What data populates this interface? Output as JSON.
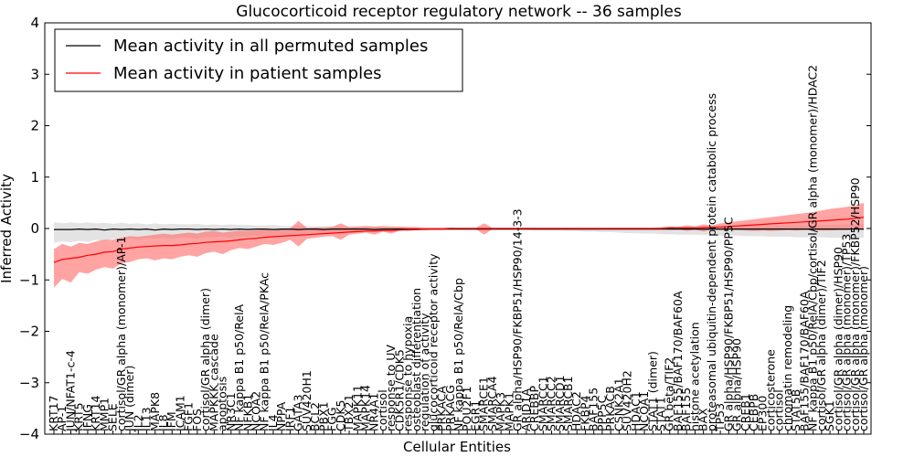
{
  "chart_data": {
    "type": "line",
    "title": "Glucocorticoid receptor regulatory network -- 36 samples",
    "xlabel": "Cellular Entities",
    "ylabel": "Inferred Activity",
    "ylim": [
      -4,
      4
    ],
    "yticks": [
      -4,
      -3,
      -2,
      -1,
      0,
      1,
      2,
      3,
      4
    ],
    "grid": false,
    "legend_position": "top-left",
    "colors": {
      "permuted": "#000000",
      "permuted_band": "#cccccc",
      "patient": "#ff0000",
      "patient_band": "#ff6666"
    },
    "x": [
      "KRT17",
      "AP-1",
      "JUN/NFAT1-c-4",
      "KRT5",
      "IFNG",
      "KRT14",
      "MMP1",
      "SELE",
      "cortisol/GR alpha (monomer)/AP-1",
      "JUN (dimer)",
      "IL2",
      "IL13",
      "MAPK8",
      "IL8",
      "IFM",
      "ICAM1",
      "FGF1",
      "FOS",
      "cortisol/GR alpha (dimer)",
      "MAPKKK cascade",
      "apoptosis",
      "NR3C1",
      "NF kappa B1 p50/RelA",
      "NFKB1",
      "NCOA2",
      "NF kappa B1 p50/RelA/PKAc",
      "IL4",
      "NPPA",
      "IRF1",
      "GATA3",
      "SUV420H1",
      "BCL2",
      "PBX1",
      "FGG",
      "CDK5",
      "TBX21",
      "MAPK11",
      "MAPK14",
      "NR4A1",
      "cortisol",
      "response to UV",
      "CDK5R1/CDK5",
      "response to hypoxia",
      "osteoblast differentiation",
      "regulation of activity",
      "glucocorticoid receptor activity",
      "PRKACA",
      "PRKACG",
      "NF kappa B1 p50/RelA/Cbp",
      "POU2F1",
      "EGR1",
      "SMARCE1",
      "SMARCA4",
      "MAPK3",
      "MAPK1",
      "GR alpha/HSP90/FKBP51/HSP90/14-3-3",
      "ARID1A",
      "CREBBP",
      "SMARCC1",
      "SMARCC2",
      "SMARCD1",
      "SMARCB1",
      "HDAC2",
      "FKBP4",
      "BAF155",
      "PPP5C",
      "PRKACB",
      "CSNK2A1",
      "SUV420H2",
      "HDAC1",
      "NCOA1",
      "STAT1 (dimer)",
      "STAT1",
      "GR beta/TIF2",
      "BAF155/BAF170/BAF60A",
      "BAF155",
      "histone acetylation",
      "BAX",
      "proteasomal ubiquitin-dependent protein catabolic process",
      "TP53",
      "GR alpha/HSP90/FKBP51/HSP90/PP5C",
      "GR alpha/HSP90",
      "CREB1",
      "CEBPB",
      "EP300",
      "corticosterone",
      "cortisol",
      "chromatin remodeling",
      "STAT5B",
      "BAF155/BAF170/BAF60A",
      "NF kappa B1 p50/RelA/Cbp/cortisol/GR alpha (monomer)/HDAC2",
      "cortisol/GR alpha (dimer)/TIF2",
      "SGK1",
      "cortisol/GR alpha (dimer)/HSP90",
      "cortisol/GR alpha (monomer)/TP53",
      "cortisol/GR alpha (monomer)/FKBP52/HSP90",
      "cortisol/GR alpha (monomer)"
    ],
    "series": [
      {
        "name": "Mean activity in all permuted samples",
        "values": [
          -0.02,
          -0.02,
          -0.02,
          -0.01,
          -0.02,
          -0.01,
          -0.03,
          -0.01,
          -0.02,
          -0.01,
          -0.02,
          -0.01,
          -0.03,
          -0.01,
          -0.02,
          -0.01,
          -0.01,
          -0.02,
          -0.01,
          -0.02,
          -0.01,
          -0.02,
          -0.01,
          -0.02,
          -0.01,
          -0.01,
          -0.02,
          -0.01,
          -0.01,
          -0.02,
          -0.01,
          -0.01,
          -0.02,
          -0.01,
          -0.01,
          -0.01,
          -0.01,
          -0.01,
          -0.02,
          -0.01,
          -0.01,
          -0.01,
          -0.01,
          -0.01,
          -0.01,
          -0.01,
          -0.01,
          -0.01,
          -0.01,
          -0.01,
          -0.01,
          -0.01,
          -0.01,
          -0.01,
          -0.01,
          -0.01,
          -0.01,
          -0.01,
          -0.01,
          -0.01,
          -0.01,
          -0.01,
          -0.01,
          -0.01,
          -0.01,
          -0.01,
          -0.01,
          -0.01,
          -0.01,
          -0.01,
          -0.01,
          -0.01,
          -0.01,
          -0.01,
          -0.01,
          -0.01,
          -0.01,
          -0.01,
          -0.01,
          -0.01,
          -0.01,
          -0.01,
          -0.01,
          -0.01,
          -0.01,
          -0.01,
          -0.01,
          -0.01,
          -0.01,
          -0.01,
          -0.01,
          -0.01,
          -0.01,
          -0.01,
          -0.01,
          -0.01,
          -0.01
        ],
        "lower": [
          -0.28,
          -0.25,
          -0.27,
          -0.24,
          -0.26,
          -0.22,
          -0.25,
          -0.2,
          -0.24,
          -0.2,
          -0.22,
          -0.19,
          -0.2,
          -0.18,
          -0.2,
          -0.17,
          -0.18,
          -0.2,
          -0.17,
          -0.18,
          -0.16,
          -0.18,
          -0.15,
          -0.16,
          -0.14,
          -0.14,
          -0.15,
          -0.12,
          -0.12,
          -0.13,
          -0.1,
          -0.1,
          -0.11,
          -0.08,
          -0.08,
          -0.07,
          -0.07,
          -0.06,
          -0.06,
          -0.05,
          -0.05,
          -0.04,
          -0.04,
          -0.04,
          -0.04,
          -0.03,
          -0.03,
          -0.03,
          -0.03,
          -0.03,
          -0.03,
          -0.03,
          -0.03,
          -0.03,
          -0.03,
          -0.03,
          -0.03,
          -0.04,
          -0.04,
          -0.04,
          -0.04,
          -0.05,
          -0.05,
          -0.06,
          -0.06,
          -0.07,
          -0.07,
          -0.08,
          -0.09,
          -0.09,
          -0.1,
          -0.1,
          -0.11,
          -0.11,
          -0.12,
          -0.12,
          -0.12,
          -0.13,
          -0.13,
          -0.14,
          -0.14,
          -0.14,
          -0.15,
          -0.15,
          -0.15,
          -0.16,
          -0.16,
          -0.16,
          -0.17,
          -0.17,
          -0.17,
          -0.17,
          -0.18,
          -0.18,
          -0.18,
          -0.18,
          -0.18
        ],
        "upper": [
          0.12,
          0.1,
          0.12,
          0.1,
          0.12,
          0.1,
          0.11,
          0.09,
          0.11,
          0.09,
          0.1,
          0.08,
          0.1,
          0.08,
          0.09,
          0.08,
          0.08,
          0.09,
          0.07,
          0.08,
          0.07,
          0.08,
          0.07,
          0.07,
          0.06,
          0.06,
          0.07,
          0.05,
          0.05,
          0.06,
          0.05,
          0.04,
          0.05,
          0.04,
          0.04,
          0.03,
          0.03,
          0.03,
          0.03,
          0.02,
          0.02,
          0.02,
          0.02,
          0.02,
          0.02,
          0.02,
          0.02,
          0.02,
          0.02,
          0.02,
          0.02,
          0.02,
          0.02,
          0.02,
          0.02,
          0.02,
          0.02,
          0.02,
          0.02,
          0.02,
          0.02,
          0.02,
          0.02,
          0.02,
          0.02,
          0.02,
          0.02,
          0.02,
          0.02,
          0.02,
          0.02,
          0.02,
          0.03,
          0.03,
          0.03,
          0.03,
          0.03,
          0.03,
          0.04,
          0.04,
          0.04,
          0.04,
          0.05,
          0.05,
          0.05,
          0.05,
          0.06,
          0.06,
          0.06,
          0.06,
          0.07,
          0.07,
          0.07,
          0.07,
          0.08,
          0.08,
          0.08
        ]
      },
      {
        "name": "Mean activity in patient samples",
        "values": [
          -0.66,
          -0.6,
          -0.58,
          -0.56,
          -0.52,
          -0.5,
          -0.46,
          -0.45,
          -0.4,
          -0.38,
          -0.36,
          -0.35,
          -0.34,
          -0.33,
          -0.33,
          -0.32,
          -0.3,
          -0.29,
          -0.27,
          -0.26,
          -0.25,
          -0.24,
          -0.22,
          -0.2,
          -0.19,
          -0.17,
          -0.16,
          -0.15,
          -0.14,
          -0.13,
          -0.12,
          -0.11,
          -0.1,
          -0.09,
          -0.08,
          -0.07,
          -0.06,
          -0.05,
          -0.05,
          -0.04,
          -0.04,
          -0.03,
          -0.02,
          -0.02,
          -0.01,
          -0.01,
          -0.01,
          0.0,
          0.0,
          0.0,
          0.0,
          0.0,
          0.0,
          0.0,
          0.0,
          0.0,
          0.0,
          0.0,
          0.0,
          0.0,
          0.0,
          0.0,
          0.0,
          0.0,
          0.0,
          0.0,
          0.0,
          0.0,
          0.0,
          0.0,
          0.0,
          0.0,
          0.0,
          0.01,
          0.01,
          0.01,
          0.01,
          0.02,
          0.02,
          0.03,
          0.04,
          0.05,
          0.06,
          0.07,
          0.08,
          0.09,
          0.1,
          0.11,
          0.12,
          0.13,
          0.14,
          0.15,
          0.16,
          0.17,
          0.18,
          0.2,
          0.22
        ],
        "lower": [
          -1.15,
          -0.98,
          -1.05,
          -0.85,
          -0.88,
          -0.8,
          -0.75,
          -0.78,
          -0.68,
          -0.65,
          -0.6,
          -0.58,
          -0.62,
          -0.58,
          -0.6,
          -0.55,
          -0.52,
          -0.55,
          -0.48,
          -0.45,
          -0.5,
          -0.42,
          -0.38,
          -0.4,
          -0.35,
          -0.3,
          -0.32,
          -0.28,
          -0.22,
          -0.35,
          -0.2,
          -0.18,
          -0.16,
          -0.15,
          -0.22,
          -0.12,
          -0.1,
          -0.08,
          -0.12,
          -0.06,
          -0.1,
          -0.04,
          -0.05,
          -0.03,
          -0.03,
          -0.02,
          -0.02,
          -0.01,
          -0.01,
          -0.01,
          -0.01,
          -0.12,
          -0.01,
          -0.01,
          -0.01,
          -0.01,
          -0.01,
          -0.01,
          -0.01,
          -0.01,
          -0.01,
          -0.01,
          -0.01,
          -0.01,
          -0.01,
          -0.01,
          -0.01,
          -0.01,
          -0.01,
          -0.01,
          -0.01,
          -0.01,
          -0.01,
          -0.02,
          -0.01,
          -0.05,
          -0.02,
          -0.06,
          -0.02,
          -0.03,
          -0.02,
          -0.03,
          -0.04,
          -0.05,
          -0.04,
          -0.05,
          -0.04,
          -0.03,
          -0.04,
          -0.03,
          -0.03,
          -0.04,
          -0.04,
          -0.03,
          -0.03,
          -0.02,
          -0.02
        ],
        "upper": [
          -0.4,
          -0.3,
          -0.35,
          -0.28,
          -0.3,
          -0.25,
          -0.22,
          -0.22,
          -0.18,
          -0.15,
          -0.16,
          -0.14,
          -0.12,
          -0.1,
          -0.12,
          -0.1,
          -0.08,
          -0.1,
          -0.06,
          -0.05,
          -0.08,
          -0.06,
          -0.04,
          -0.05,
          -0.03,
          -0.02,
          -0.04,
          -0.01,
          0.0,
          0.15,
          0.01,
          0.02,
          0.02,
          0.03,
          0.1,
          0.03,
          0.04,
          0.05,
          0.04,
          0.05,
          0.04,
          0.04,
          0.03,
          0.03,
          0.02,
          0.02,
          0.02,
          0.02,
          0.01,
          0.01,
          0.01,
          0.1,
          0.01,
          0.01,
          0.01,
          0.01,
          0.01,
          0.01,
          0.01,
          0.01,
          0.01,
          0.01,
          0.01,
          0.01,
          0.01,
          0.01,
          0.01,
          0.01,
          0.01,
          0.01,
          0.01,
          0.01,
          0.02,
          0.04,
          0.03,
          0.06,
          0.04,
          0.08,
          0.06,
          0.1,
          0.12,
          0.14,
          0.16,
          0.18,
          0.2,
          0.22,
          0.24,
          0.26,
          0.28,
          0.3,
          0.32,
          0.35,
          0.38,
          0.4,
          0.42,
          0.45,
          0.5
        ]
      }
    ]
  }
}
